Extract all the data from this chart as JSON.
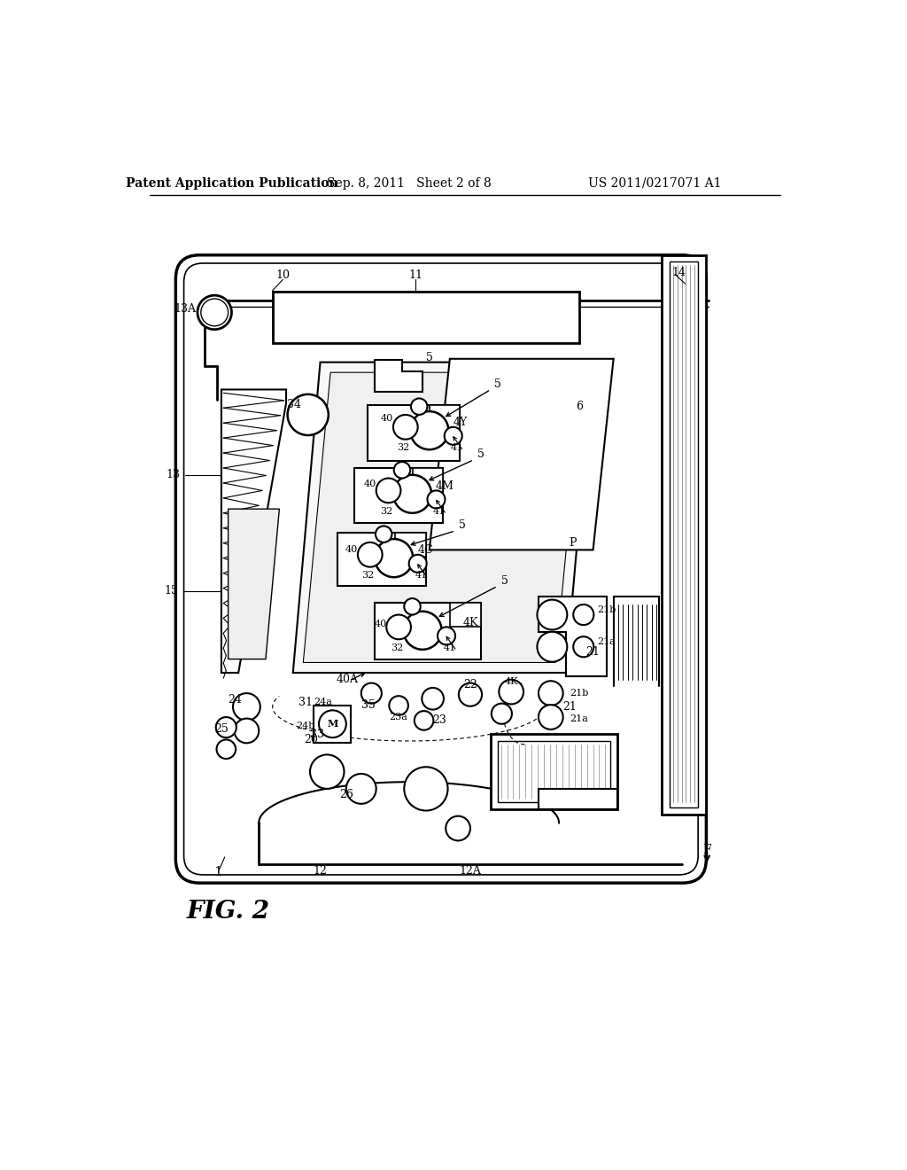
{
  "background_color": "#ffffff",
  "header_left": "Patent Application Publication",
  "header_mid": "Sep. 8, 2011   Sheet 2 of 8",
  "header_right": "US 2011/0217071 A1",
  "figure_label": "FIG. 2"
}
